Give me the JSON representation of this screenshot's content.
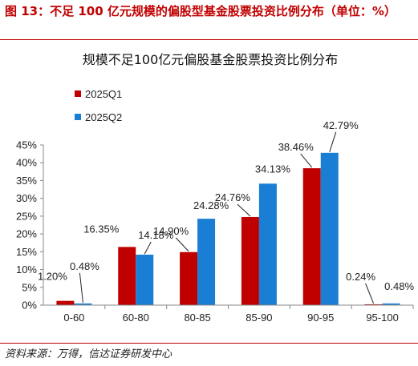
{
  "figure": {
    "caption": "图 13：不足 100 亿元规模的偏股型基金股票投资比例分布（单位：%）",
    "source": "资料来源：万得，信达证券研发中心"
  },
  "chart_data": {
    "type": "bar",
    "title": "规模不足100亿元偏股基金股票投资比例分布",
    "categories": [
      "0-60",
      "60-80",
      "80-85",
      "85-90",
      "90-95",
      "95-100"
    ],
    "series": [
      {
        "name": "2025Q1",
        "color": "#c00000",
        "values": [
          1.2,
          16.35,
          14.9,
          24.76,
          38.46,
          0.24
        ],
        "labels": [
          "1.20%",
          "16.35%",
          "14.90%",
          "24.76%",
          "38.46%",
          "0.24%"
        ]
      },
      {
        "name": "2025Q2",
        "color": "#1a7fd4",
        "values": [
          0.48,
          14.18,
          24.28,
          34.13,
          42.79,
          0.48
        ],
        "labels": [
          "0.48%",
          "14.18%",
          "24.28%",
          "34.13%",
          "42.79%",
          "0.48%"
        ]
      }
    ],
    "ylim": [
      0,
      45
    ],
    "yticks": [
      "0%",
      "5%",
      "10%",
      "15%",
      "20%",
      "25%",
      "30%",
      "35%",
      "40%",
      "45%"
    ],
    "legend_position": "top-left",
    "grid": false
  }
}
